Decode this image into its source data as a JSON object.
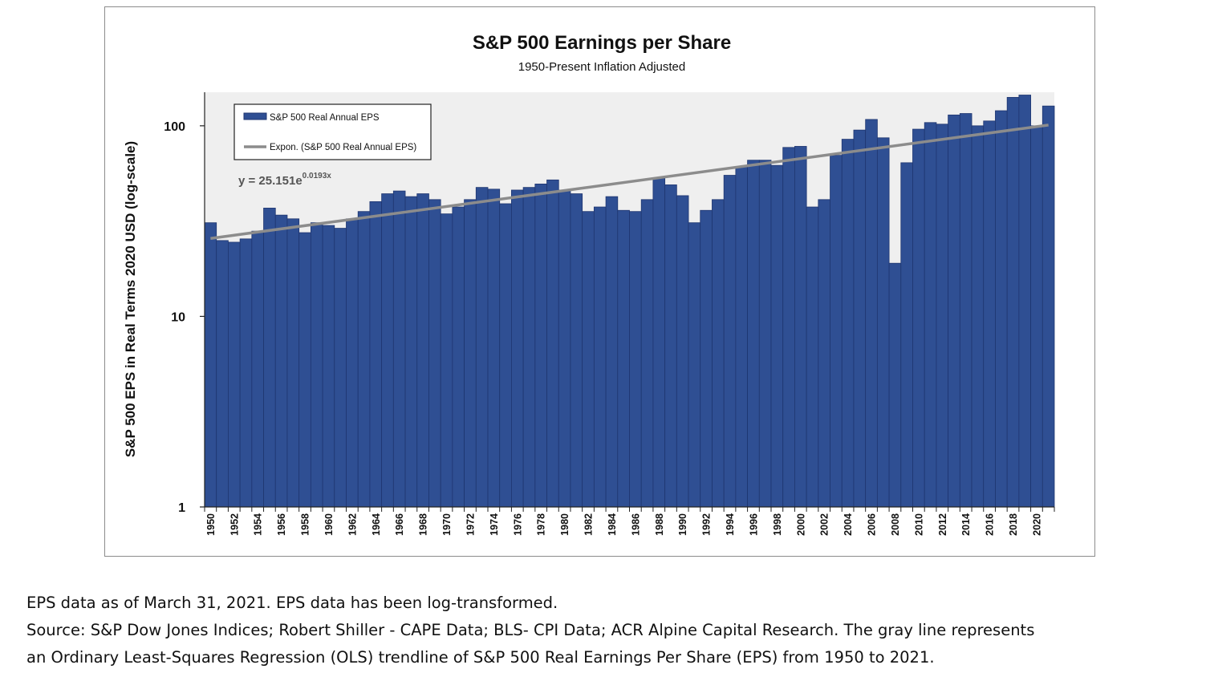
{
  "chart_data": {
    "type": "bar",
    "title": "S&P 500 Earnings per Share",
    "subtitle": "1950-Present Inflation Adjusted",
    "ylabel": "S&P 500 EPS in Real Terms 2020 USD (log-scale)",
    "xlabel": "",
    "yscale": "log",
    "ylim": [
      1,
      150
    ],
    "yticks": [
      1,
      10,
      100
    ],
    "ytick_labels": [
      "1",
      "10",
      "100"
    ],
    "grid": false,
    "legend_position": "top-left",
    "legend": [
      "S&P 500 Real Annual EPS",
      "Expon. (S&P 500 Real Annual EPS)"
    ],
    "trendline": {
      "name": "Expon. (S&P 500 Real Annual EPS)",
      "equation_prefix": "y = 25.151e",
      "equation_exponent": "0.0193x",
      "a": 25.151,
      "b": 0.0193,
      "color": "#8c8c8c"
    },
    "bar_color": "#2f4f93",
    "bar_edge_color": "#1f3670",
    "plot_background": "#efefef",
    "categories": [
      1950,
      1951,
      1952,
      1953,
      1954,
      1955,
      1956,
      1957,
      1958,
      1959,
      1960,
      1961,
      1962,
      1963,
      1964,
      1965,
      1966,
      1967,
      1968,
      1969,
      1970,
      1971,
      1972,
      1973,
      1974,
      1975,
      1976,
      1977,
      1978,
      1979,
      1980,
      1981,
      1982,
      1983,
      1984,
      1985,
      1986,
      1987,
      1988,
      1989,
      1990,
      1991,
      1992,
      1993,
      1994,
      1995,
      1996,
      1997,
      1998,
      1999,
      2000,
      2001,
      2002,
      2003,
      2004,
      2005,
      2006,
      2007,
      2008,
      2009,
      2010,
      2011,
      2012,
      2013,
      2014,
      2015,
      2016,
      2017,
      2018,
      2019,
      2020,
      2021
    ],
    "tick_labels": [
      "1950",
      "1952",
      "1954",
      "1956",
      "1958",
      "1960",
      "1962",
      "1964",
      "1966",
      "1968",
      "1970",
      "1972",
      "1974",
      "1976",
      "1978",
      "1980",
      "1982",
      "1984",
      "1986",
      "1988",
      "1990",
      "1992",
      "1994",
      "1996",
      "1998",
      "2000",
      "2002",
      "2004",
      "2006",
      "2008",
      "2010",
      "2012",
      "2014",
      "2016",
      "2018",
      "2020"
    ],
    "series": [
      {
        "name": "S&P 500 Real Annual EPS",
        "values": [
          31,
          25,
          24.5,
          25.5,
          28,
          37,
          34,
          32.5,
          27.5,
          31,
          30,
          29,
          32.5,
          35.5,
          40,
          44,
          45.5,
          42.5,
          44,
          41,
          34.5,
          37.5,
          41,
          47.5,
          46.5,
          39,
          46,
          47.5,
          49.5,
          52,
          46,
          44,
          35.5,
          37.5,
          42.5,
          36,
          35.5,
          41,
          53,
          49,
          43,
          31,
          36,
          41,
          55,
          61,
          66,
          66,
          62,
          77,
          78,
          37.5,
          41,
          70,
          85,
          95,
          108,
          86.5,
          19,
          64,
          96,
          104,
          102,
          114,
          116,
          100,
          106,
          120,
          141,
          145,
          100,
          127
        ]
      }
    ]
  },
  "caption": {
    "line1": "EPS data as of March 31, 2021. EPS data has been log-transformed.",
    "line2": "Source: S&P Dow Jones Indices; Robert Shiller - CAPE Data; BLS- CPI Data; ACR Alpine Capital Research. The gray line represents",
    "line3": "an Ordinary Least-Squares Regression (OLS) trendline of S&P 500 Real Earnings Per Share (EPS) from 1950 to 2021."
  }
}
